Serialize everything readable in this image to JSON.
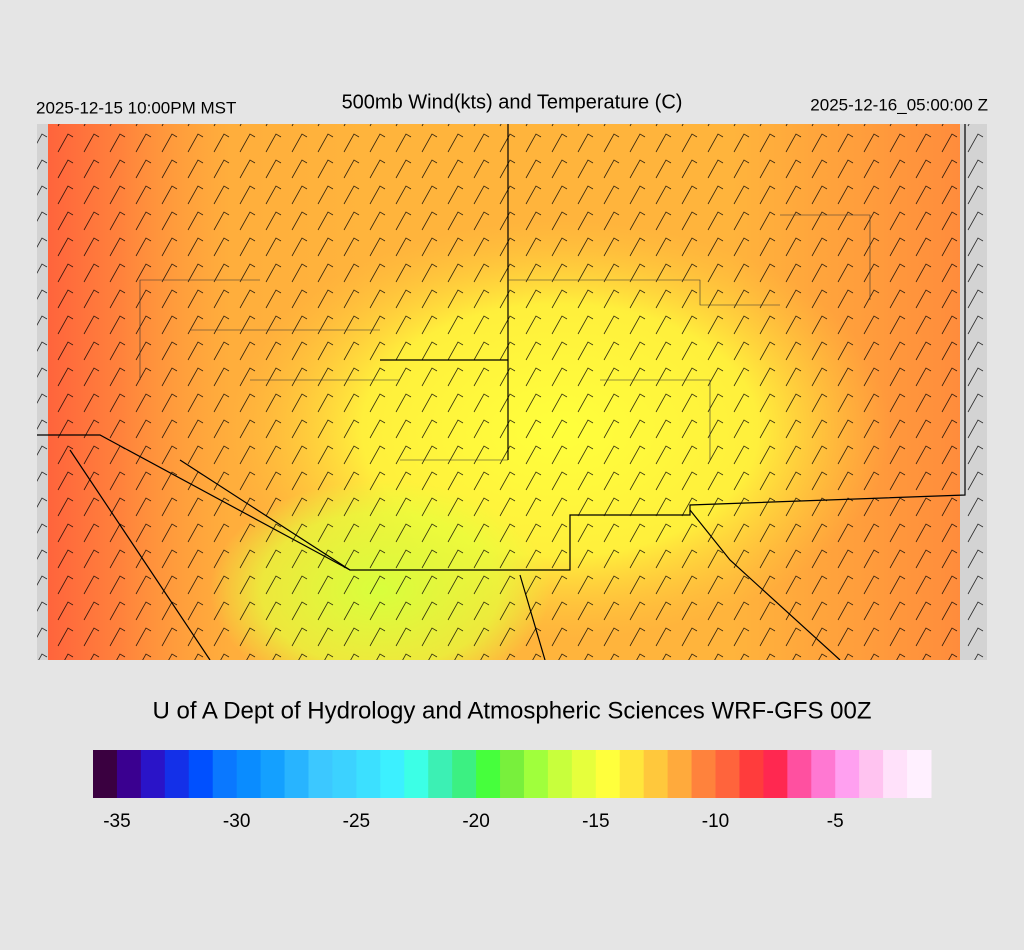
{
  "header": {
    "left": "2025-12-15 10:00PM MST",
    "title": "500mb Wind(kts) and Temperature (C)",
    "right": "2025-12-16_05:00:00 Z"
  },
  "footer": {
    "credit": "U of A Dept of Hydrology and Atmospheric Sciences WRF-GFS 00Z"
  },
  "colorbar": {
    "lim": [
      -36,
      -1
    ],
    "ticks": [
      -35,
      -30,
      -25,
      -20,
      -15,
      -10,
      -5
    ],
    "colors": [
      "#3a0040",
      "#3a0090",
      "#2a14c8",
      "#1430e8",
      "#0050ff",
      "#0a78ff",
      "#0a8cff",
      "#14a0ff",
      "#28b4ff",
      "#3cc8ff",
      "#3cd2ff",
      "#3ce0ff",
      "#3cf0ff",
      "#3cffe6",
      "#3cf0b4",
      "#3cf082",
      "#46ff3c",
      "#78f03c",
      "#a0ff3c",
      "#c8ff3c",
      "#e6ff3c",
      "#ffff3c",
      "#ffe63c",
      "#ffc83c",
      "#ffaa3c",
      "#ff823c",
      "#ff643c",
      "#ff3c3c",
      "#ff2850",
      "#ff50a0",
      "#ff78d2",
      "#ffa0f0",
      "#ffc3f0",
      "#ffe1fa",
      "#fff0ff"
    ]
  }
}
